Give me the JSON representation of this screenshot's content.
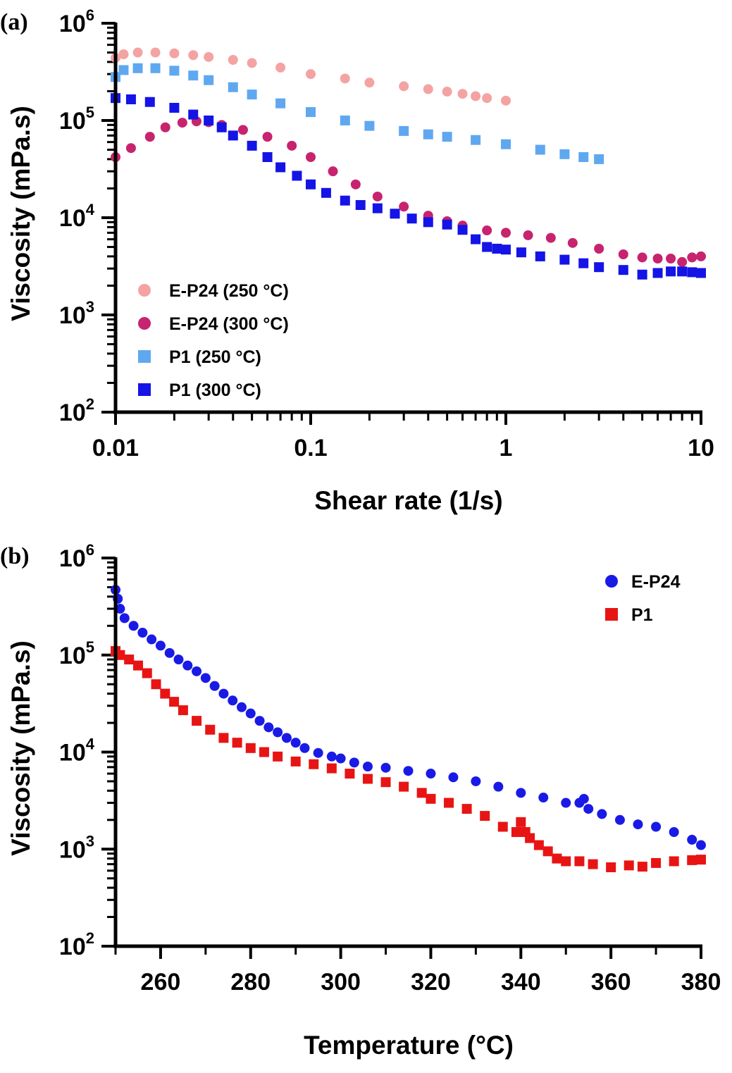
{
  "chart_data": [
    {
      "type": "scatter",
      "panel_label": "(a)",
      "xlabel": "Shear rate (1/s)",
      "ylabel": "Viscosity (mPa.s)",
      "xscale": "log",
      "yscale": "log",
      "xlim": [
        0.01,
        10
      ],
      "ylim": [
        100,
        1000000
      ],
      "x_ticks": [
        {
          "value": 0.01,
          "label": "0.01"
        },
        {
          "value": 0.1,
          "label": "0.1"
        },
        {
          "value": 1,
          "label": "1"
        },
        {
          "value": 10,
          "label": "10"
        }
      ],
      "y_ticks": [
        {
          "value": 100,
          "base": "10",
          "exp": "2"
        },
        {
          "value": 1000,
          "base": "10",
          "exp": "3"
        },
        {
          "value": 10000,
          "base": "10",
          "exp": "4"
        },
        {
          "value": 100000,
          "base": "10",
          "exp": "5"
        },
        {
          "value": 1000000,
          "base": "10",
          "exp": "6"
        }
      ],
      "legend_position": "bottom-left",
      "series": [
        {
          "name": "E-P24 (250 °C)",
          "color": "#f4a3a3",
          "marker": "circle",
          "points": [
            [
              0.01,
              440000
            ],
            [
              0.011,
              480000
            ],
            [
              0.013,
              500000
            ],
            [
              0.016,
              500000
            ],
            [
              0.02,
              490000
            ],
            [
              0.025,
              470000
            ],
            [
              0.03,
              450000
            ],
            [
              0.04,
              420000
            ],
            [
              0.05,
              390000
            ],
            [
              0.07,
              350000
            ],
            [
              0.1,
              300000
            ],
            [
              0.15,
              270000
            ],
            [
              0.2,
              245000
            ],
            [
              0.3,
              225000
            ],
            [
              0.4,
              210000
            ],
            [
              0.5,
              198000
            ],
            [
              0.6,
              188000
            ],
            [
              0.7,
              178000
            ],
            [
              0.8,
              170000
            ],
            [
              1.0,
              160000
            ]
          ]
        },
        {
          "name": "E-P24 (300 °C)",
          "color": "#c8236e",
          "marker": "circle",
          "points": [
            [
              0.01,
              42000
            ],
            [
              0.012,
              52000
            ],
            [
              0.015,
              68000
            ],
            [
              0.018,
              85000
            ],
            [
              0.022,
              95000
            ],
            [
              0.026,
              98000
            ],
            [
              0.03,
              96000
            ],
            [
              0.035,
              90000
            ],
            [
              0.045,
              80000
            ],
            [
              0.06,
              68000
            ],
            [
              0.08,
              55000
            ],
            [
              0.1,
              42000
            ],
            [
              0.13,
              30000
            ],
            [
              0.17,
              22000
            ],
            [
              0.22,
              16500
            ],
            [
              0.3,
              13000
            ],
            [
              0.4,
              10500
            ],
            [
              0.5,
              9200
            ],
            [
              0.6,
              8300
            ],
            [
              0.8,
              7400
            ],
            [
              1.0,
              7000
            ],
            [
              1.3,
              6600
            ],
            [
              1.7,
              6200
            ],
            [
              2.2,
              5500
            ],
            [
              3.0,
              4800
            ],
            [
              4.0,
              4200
            ],
            [
              5.0,
              3900
            ],
            [
              6.0,
              3800
            ],
            [
              7.0,
              3800
            ],
            [
              8.0,
              3500
            ],
            [
              9.0,
              3900
            ],
            [
              10,
              4000
            ]
          ]
        },
        {
          "name": "P1 (250 °C)",
          "color": "#5fa8f0",
          "marker": "square",
          "points": [
            [
              0.01,
              280000
            ],
            [
              0.011,
              330000
            ],
            [
              0.013,
              345000
            ],
            [
              0.016,
              345000
            ],
            [
              0.02,
              325000
            ],
            [
              0.025,
              290000
            ],
            [
              0.03,
              260000
            ],
            [
              0.04,
              220000
            ],
            [
              0.05,
              185000
            ],
            [
              0.07,
              150000
            ],
            [
              0.1,
              122000
            ],
            [
              0.15,
              100000
            ],
            [
              0.2,
              88000
            ],
            [
              0.3,
              78000
            ],
            [
              0.4,
              72000
            ],
            [
              0.5,
              68000
            ],
            [
              0.7,
              63000
            ],
            [
              1.0,
              57000
            ],
            [
              1.5,
              50000
            ],
            [
              2.0,
              45000
            ],
            [
              2.5,
              42000
            ],
            [
              3.0,
              40000
            ]
          ]
        },
        {
          "name": "P1 (300 °C)",
          "color": "#1414e6",
          "marker": "square",
          "points": [
            [
              0.01,
              170000
            ],
            [
              0.012,
              165000
            ],
            [
              0.015,
              155000
            ],
            [
              0.02,
              135000
            ],
            [
              0.025,
              115000
            ],
            [
              0.03,
              100000
            ],
            [
              0.035,
              85000
            ],
            [
              0.04,
              70000
            ],
            [
              0.05,
              55000
            ],
            [
              0.06,
              42000
            ],
            [
              0.07,
              33000
            ],
            [
              0.085,
              27000
            ],
            [
              0.1,
              22000
            ],
            [
              0.12,
              18000
            ],
            [
              0.15,
              15000
            ],
            [
              0.18,
              13500
            ],
            [
              0.22,
              12500
            ],
            [
              0.27,
              11000
            ],
            [
              0.33,
              9800
            ],
            [
              0.4,
              9000
            ],
            [
              0.5,
              8500
            ],
            [
              0.6,
              7500
            ],
            [
              0.7,
              6000
            ],
            [
              0.8,
              5000
            ],
            [
              0.9,
              4800
            ],
            [
              1.0,
              4700
            ],
            [
              1.2,
              4400
            ],
            [
              1.5,
              4000
            ],
            [
              2.0,
              3700
            ],
            [
              2.5,
              3400
            ],
            [
              3.0,
              3100
            ],
            [
              4.0,
              2900
            ],
            [
              5.0,
              2600
            ],
            [
              6.0,
              2700
            ],
            [
              7.0,
              2800
            ],
            [
              8.0,
              2800
            ],
            [
              9.0,
              2750
            ],
            [
              10,
              2700
            ]
          ]
        }
      ]
    },
    {
      "type": "scatter",
      "panel_label": "(b)",
      "xlabel": "Temperature  (°C)",
      "ylabel": "Viscosity (mPa.s)",
      "xscale": "linear",
      "yscale": "log",
      "xlim": [
        250,
        380
      ],
      "ylim": [
        100,
        1000000
      ],
      "x_ticks": [
        {
          "value": 260,
          "label": "260"
        },
        {
          "value": 280,
          "label": "280"
        },
        {
          "value": 300,
          "label": "300"
        },
        {
          "value": 320,
          "label": "320"
        },
        {
          "value": 340,
          "label": "340"
        },
        {
          "value": 360,
          "label": "360"
        },
        {
          "value": 380,
          "label": "380"
        }
      ],
      "y_ticks": [
        {
          "value": 100,
          "base": "10",
          "exp": "2"
        },
        {
          "value": 1000,
          "base": "10",
          "exp": "3"
        },
        {
          "value": 10000,
          "base": "10",
          "exp": "4"
        },
        {
          "value": 100000,
          "base": "10",
          "exp": "5"
        },
        {
          "value": 1000000,
          "base": "10",
          "exp": "6"
        }
      ],
      "legend_position": "top-right",
      "series": [
        {
          "name": "E-P24",
          "color": "#1a1ae6",
          "marker": "circle",
          "points": [
            [
              250,
              470000
            ],
            [
              250.5,
              380000
            ],
            [
              251,
              300000
            ],
            [
              252,
              240000
            ],
            [
              254,
              200000
            ],
            [
              256,
              170000
            ],
            [
              258,
              145000
            ],
            [
              260,
              125000
            ],
            [
              262,
              105000
            ],
            [
              264,
              90000
            ],
            [
              266,
              78000
            ],
            [
              268,
              68000
            ],
            [
              270,
              58000
            ],
            [
              272,
              48000
            ],
            [
              274,
              40000
            ],
            [
              276,
              34000
            ],
            [
              278,
              29000
            ],
            [
              280,
              25000
            ],
            [
              282,
              21000
            ],
            [
              284,
              18000
            ],
            [
              286,
              16000
            ],
            [
              288,
              14000
            ],
            [
              290,
              12500
            ],
            [
              292,
              11000
            ],
            [
              295,
              9800
            ],
            [
              298,
              9000
            ],
            [
              300,
              8600
            ],
            [
              303,
              7800
            ],
            [
              306,
              7100
            ],
            [
              310,
              6900
            ],
            [
              315,
              6400
            ],
            [
              320,
              6000
            ],
            [
              325,
              5500
            ],
            [
              330,
              5000
            ],
            [
              335,
              4400
            ],
            [
              340,
              3800
            ],
            [
              345,
              3400
            ],
            [
              350,
              3000
            ],
            [
              353,
              3000
            ],
            [
              354,
              3300
            ],
            [
              355,
              2600
            ],
            [
              358,
              2300
            ],
            [
              362,
              2000
            ],
            [
              366,
              1800
            ],
            [
              370,
              1700
            ],
            [
              374,
              1500
            ],
            [
              378,
              1250
            ],
            [
              380,
              1100
            ]
          ]
        },
        {
          "name": "P1",
          "color": "#e81414",
          "marker": "square",
          "points": [
            [
              250,
              110000
            ],
            [
              251,
              100000
            ],
            [
              253,
              90000
            ],
            [
              255,
              78000
            ],
            [
              257,
              65000
            ],
            [
              259,
              50000
            ],
            [
              261,
              40000
            ],
            [
              263,
              33000
            ],
            [
              265,
              27000
            ],
            [
              268,
              21000
            ],
            [
              271,
              17000
            ],
            [
              274,
              14000
            ],
            [
              277,
              12500
            ],
            [
              280,
              11000
            ],
            [
              283,
              10000
            ],
            [
              286,
              9000
            ],
            [
              290,
              8000
            ],
            [
              294,
              7500
            ],
            [
              298,
              6800
            ],
            [
              302,
              6000
            ],
            [
              306,
              5300
            ],
            [
              310,
              4900
            ],
            [
              314,
              4400
            ],
            [
              318,
              3800
            ],
            [
              320,
              3300
            ],
            [
              324,
              3000
            ],
            [
              328,
              2600
            ],
            [
              332,
              2200
            ],
            [
              336,
              1700
            ],
            [
              339,
              1500
            ],
            [
              340,
              1900
            ],
            [
              341,
              1500
            ],
            [
              342,
              1300
            ],
            [
              344,
              1100
            ],
            [
              346,
              950
            ],
            [
              348,
              800
            ],
            [
              350,
              750
            ],
            [
              353,
              750
            ],
            [
              356,
              700
            ],
            [
              360,
              650
            ],
            [
              364,
              680
            ],
            [
              367,
              660
            ],
            [
              370,
              720
            ],
            [
              374,
              750
            ],
            [
              378,
              770
            ],
            [
              380,
              780
            ]
          ]
        }
      ]
    }
  ]
}
